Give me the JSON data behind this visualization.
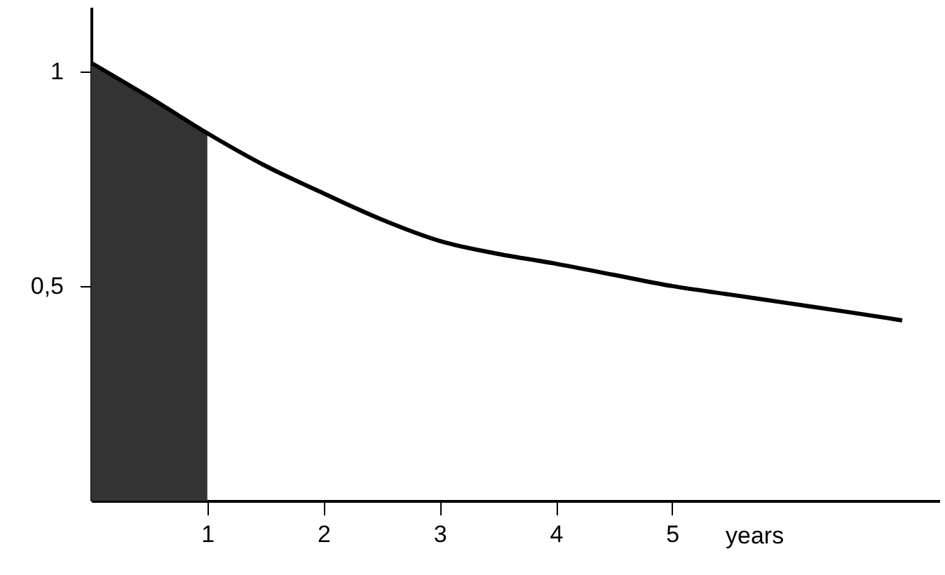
{
  "chart_data": {
    "type": "line",
    "xlabel": "years",
    "xlim": [
      0,
      7.3
    ],
    "ylim": [
      0,
      1.15
    ],
    "xticks": [
      1,
      2,
      3,
      4,
      5
    ],
    "yticks": [
      {
        "value": 0.5,
        "label": "0,5"
      },
      1
    ],
    "grid": false,
    "marker": "none",
    "line_style": "solid",
    "series": [
      {
        "type": "area",
        "color": "#333333",
        "x": [
          0,
          0.5,
          1
        ],
        "values": [
          1.02,
          0.94,
          0.856
        ]
      },
      {
        "color": "#000000",
        "x": [
          0,
          0.5,
          1,
          1.5,
          2,
          2.5,
          3,
          3.5,
          4,
          4.5,
          5,
          5.5,
          6,
          6.5,
          6.98
        ],
        "values": [
          1.02,
          0.94,
          0.856,
          0.78,
          0.716,
          0.655,
          0.605,
          0.575,
          0.552,
          0.526,
          0.5,
          0.48,
          0.46,
          0.44,
          0.42
        ]
      }
    ]
  }
}
